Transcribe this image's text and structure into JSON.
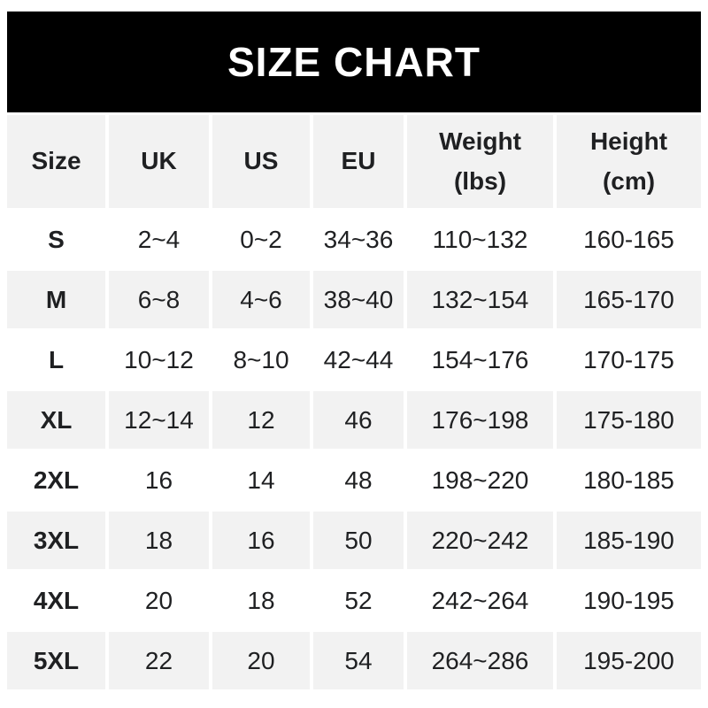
{
  "banner": {
    "title": "SIZE CHART"
  },
  "chart_data": {
    "type": "table",
    "title": "SIZE CHART",
    "columns": [
      "Size",
      "UK",
      "US",
      "EU",
      "Weight (lbs)",
      "Height (cm)"
    ],
    "header_lines": [
      [
        "Size"
      ],
      [
        "UK"
      ],
      [
        "US"
      ],
      [
        "EU"
      ],
      [
        "Weight",
        "(lbs)"
      ],
      [
        "Height",
        "(cm)"
      ]
    ],
    "rows": [
      [
        "S",
        "2~4",
        "0~2",
        "34~36",
        "110~132",
        "160-165"
      ],
      [
        "M",
        "6~8",
        "4~6",
        "38~40",
        "132~154",
        "165-170"
      ],
      [
        "L",
        "10~12",
        "8~10",
        "42~44",
        "154~176",
        "170-175"
      ],
      [
        "XL",
        "12~14",
        "12",
        "46",
        "176~198",
        "175-180"
      ],
      [
        "2XL",
        "16",
        "14",
        "48",
        "198~220",
        "180-185"
      ],
      [
        "3XL",
        "18",
        "16",
        "50",
        "220~242",
        "185-190"
      ],
      [
        "4XL",
        "20",
        "18",
        "52",
        "242~264",
        "190-195"
      ],
      [
        "5XL",
        "22",
        "20",
        "54",
        "264~286",
        "195-200"
      ]
    ]
  },
  "colors": {
    "page_bg": "#ffffff",
    "banner_bg": "#000000",
    "banner_text": "#ffffff",
    "row_bg": "#ffffff",
    "row_alt_bg": "#f2f2f2",
    "text": "#1f2022"
  }
}
